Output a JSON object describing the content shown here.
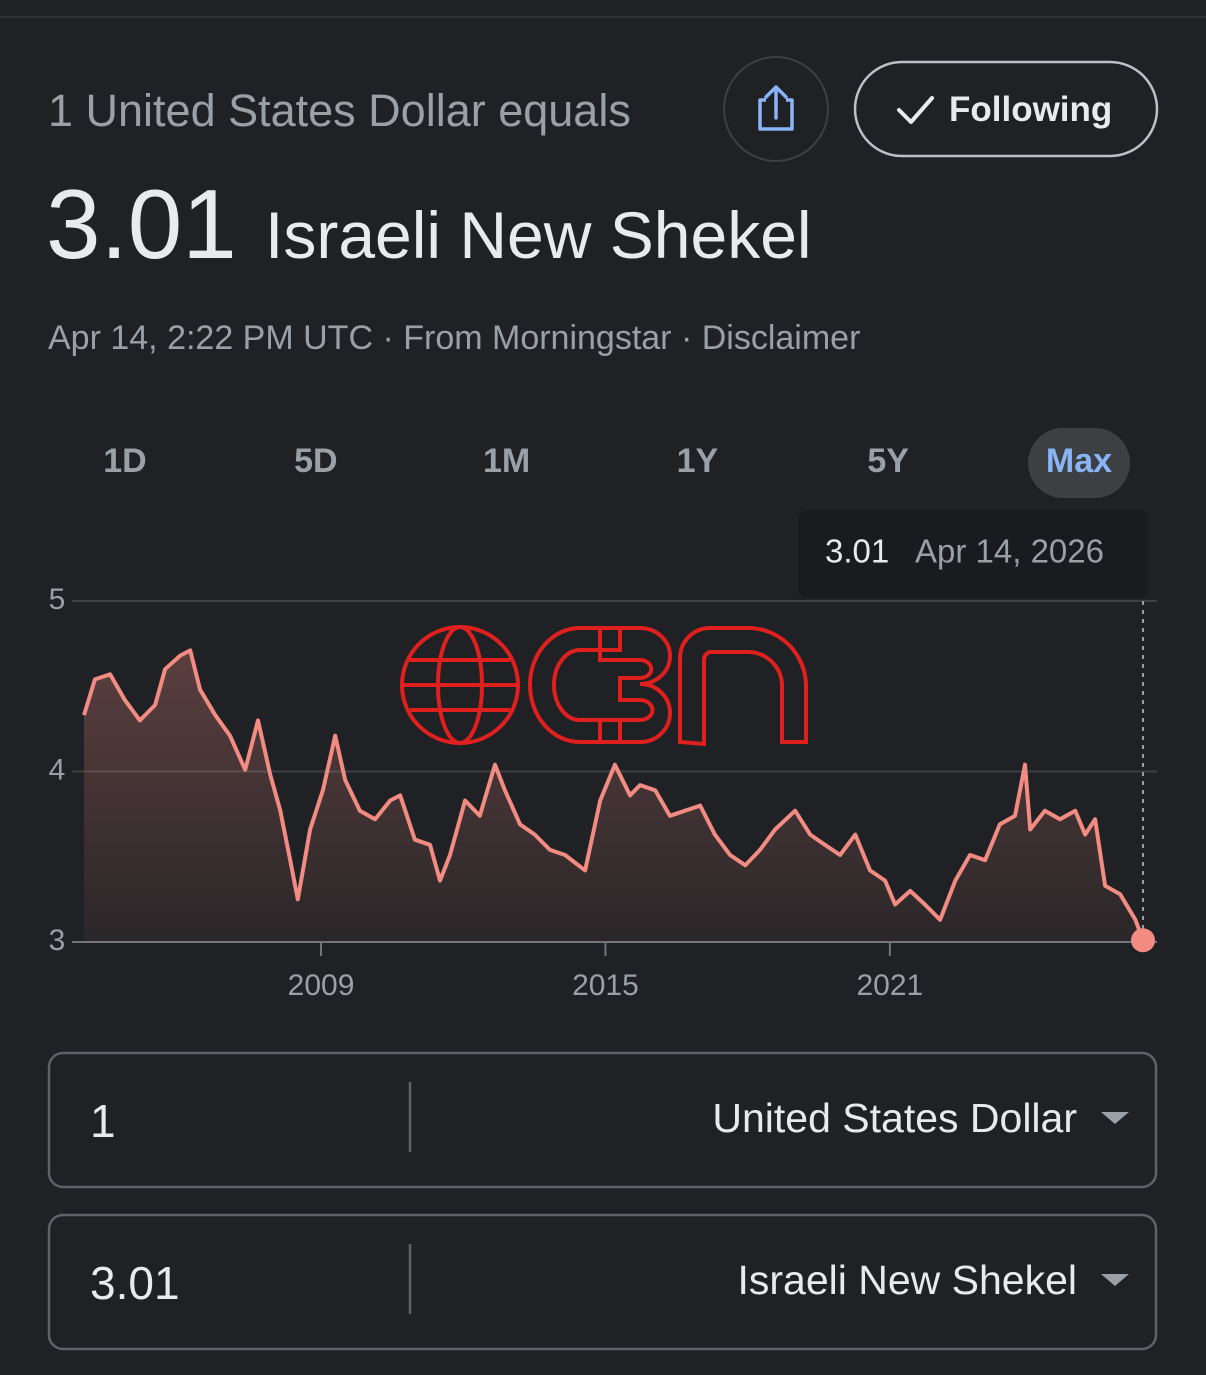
{
  "header": {
    "equals_label": "1 United States Dollar equals",
    "rate": 3.01,
    "currency": "Israeli New Shekel",
    "meta": "Apr 14, 2:22 PM UTC · From Morningstar · Disclaimer",
    "follow_button": "Following"
  },
  "ranges": [
    "1D",
    "5D",
    "1M",
    "1Y",
    "5Y",
    "Max"
  ],
  "selected_range": "Max",
  "chart_data": {
    "type": "line",
    "color": "#f28b82",
    "grid": true,
    "tooltip": {
      "value": 3.01,
      "date": "Apr 14, 2026"
    },
    "xlim": [
      2004,
      2026.34
    ],
    "xticks": [
      2009,
      2015,
      2021
    ],
    "ylim": [
      3,
      5
    ],
    "yticks": [
      3,
      4,
      5
    ],
    "x": [
      2004.0,
      2004.23,
      2004.55,
      2004.86,
      2005.18,
      2005.5,
      2005.71,
      2006.03,
      2006.24,
      2006.45,
      2006.77,
      2007.08,
      2007.4,
      2007.67,
      2007.93,
      2008.14,
      2008.35,
      2008.51,
      2008.77,
      2009.04,
      2009.3,
      2009.51,
      2009.82,
      2010.14,
      2010.46,
      2010.67,
      2010.98,
      2011.3,
      2011.51,
      2011.72,
      2012.04,
      2012.35,
      2012.67,
      2012.88,
      2013.2,
      2013.51,
      2013.83,
      2014.15,
      2014.57,
      2014.89,
      2015.2,
      2015.52,
      2015.73,
      2016.05,
      2016.36,
      2016.68,
      2017.0,
      2017.31,
      2017.63,
      2017.95,
      2018.26,
      2018.58,
      2019.0,
      2019.32,
      2019.63,
      2019.95,
      2020.27,
      2020.58,
      2020.9,
      2021.11,
      2021.43,
      2021.74,
      2022.06,
      2022.38,
      2022.69,
      2023.01,
      2023.32,
      2023.64,
      2023.85,
      2023.96,
      2024.27,
      2024.59,
      2024.91,
      2025.12,
      2025.33,
      2025.54,
      2025.86,
      2026.18,
      2026.34
    ],
    "values": [
      4.33,
      4.54,
      4.57,
      4.42,
      4.3,
      4.39,
      4.6,
      4.68,
      4.71,
      4.48,
      4.33,
      4.21,
      4.01,
      4.3,
      3.98,
      3.77,
      3.48,
      3.25,
      3.66,
      3.89,
      4.21,
      3.95,
      3.77,
      3.72,
      3.83,
      3.86,
      3.6,
      3.57,
      3.36,
      3.51,
      3.83,
      3.74,
      4.04,
      3.89,
      3.69,
      3.63,
      3.54,
      3.51,
      3.42,
      3.83,
      4.04,
      3.86,
      3.92,
      3.89,
      3.74,
      3.77,
      3.8,
      3.63,
      3.51,
      3.45,
      3.54,
      3.66,
      3.77,
      3.63,
      3.57,
      3.51,
      3.63,
      3.42,
      3.36,
      3.22,
      3.3,
      3.22,
      3.13,
      3.36,
      3.51,
      3.48,
      3.69,
      3.74,
      4.04,
      3.66,
      3.77,
      3.72,
      3.77,
      3.63,
      3.72,
      3.33,
      3.28,
      3.13,
      3.01
    ]
  },
  "converter": {
    "from": {
      "amount": 1,
      "currency": "United States Dollar"
    },
    "to": {
      "amount": 3.01,
      "currency": "Israeli New Shekel"
    }
  }
}
